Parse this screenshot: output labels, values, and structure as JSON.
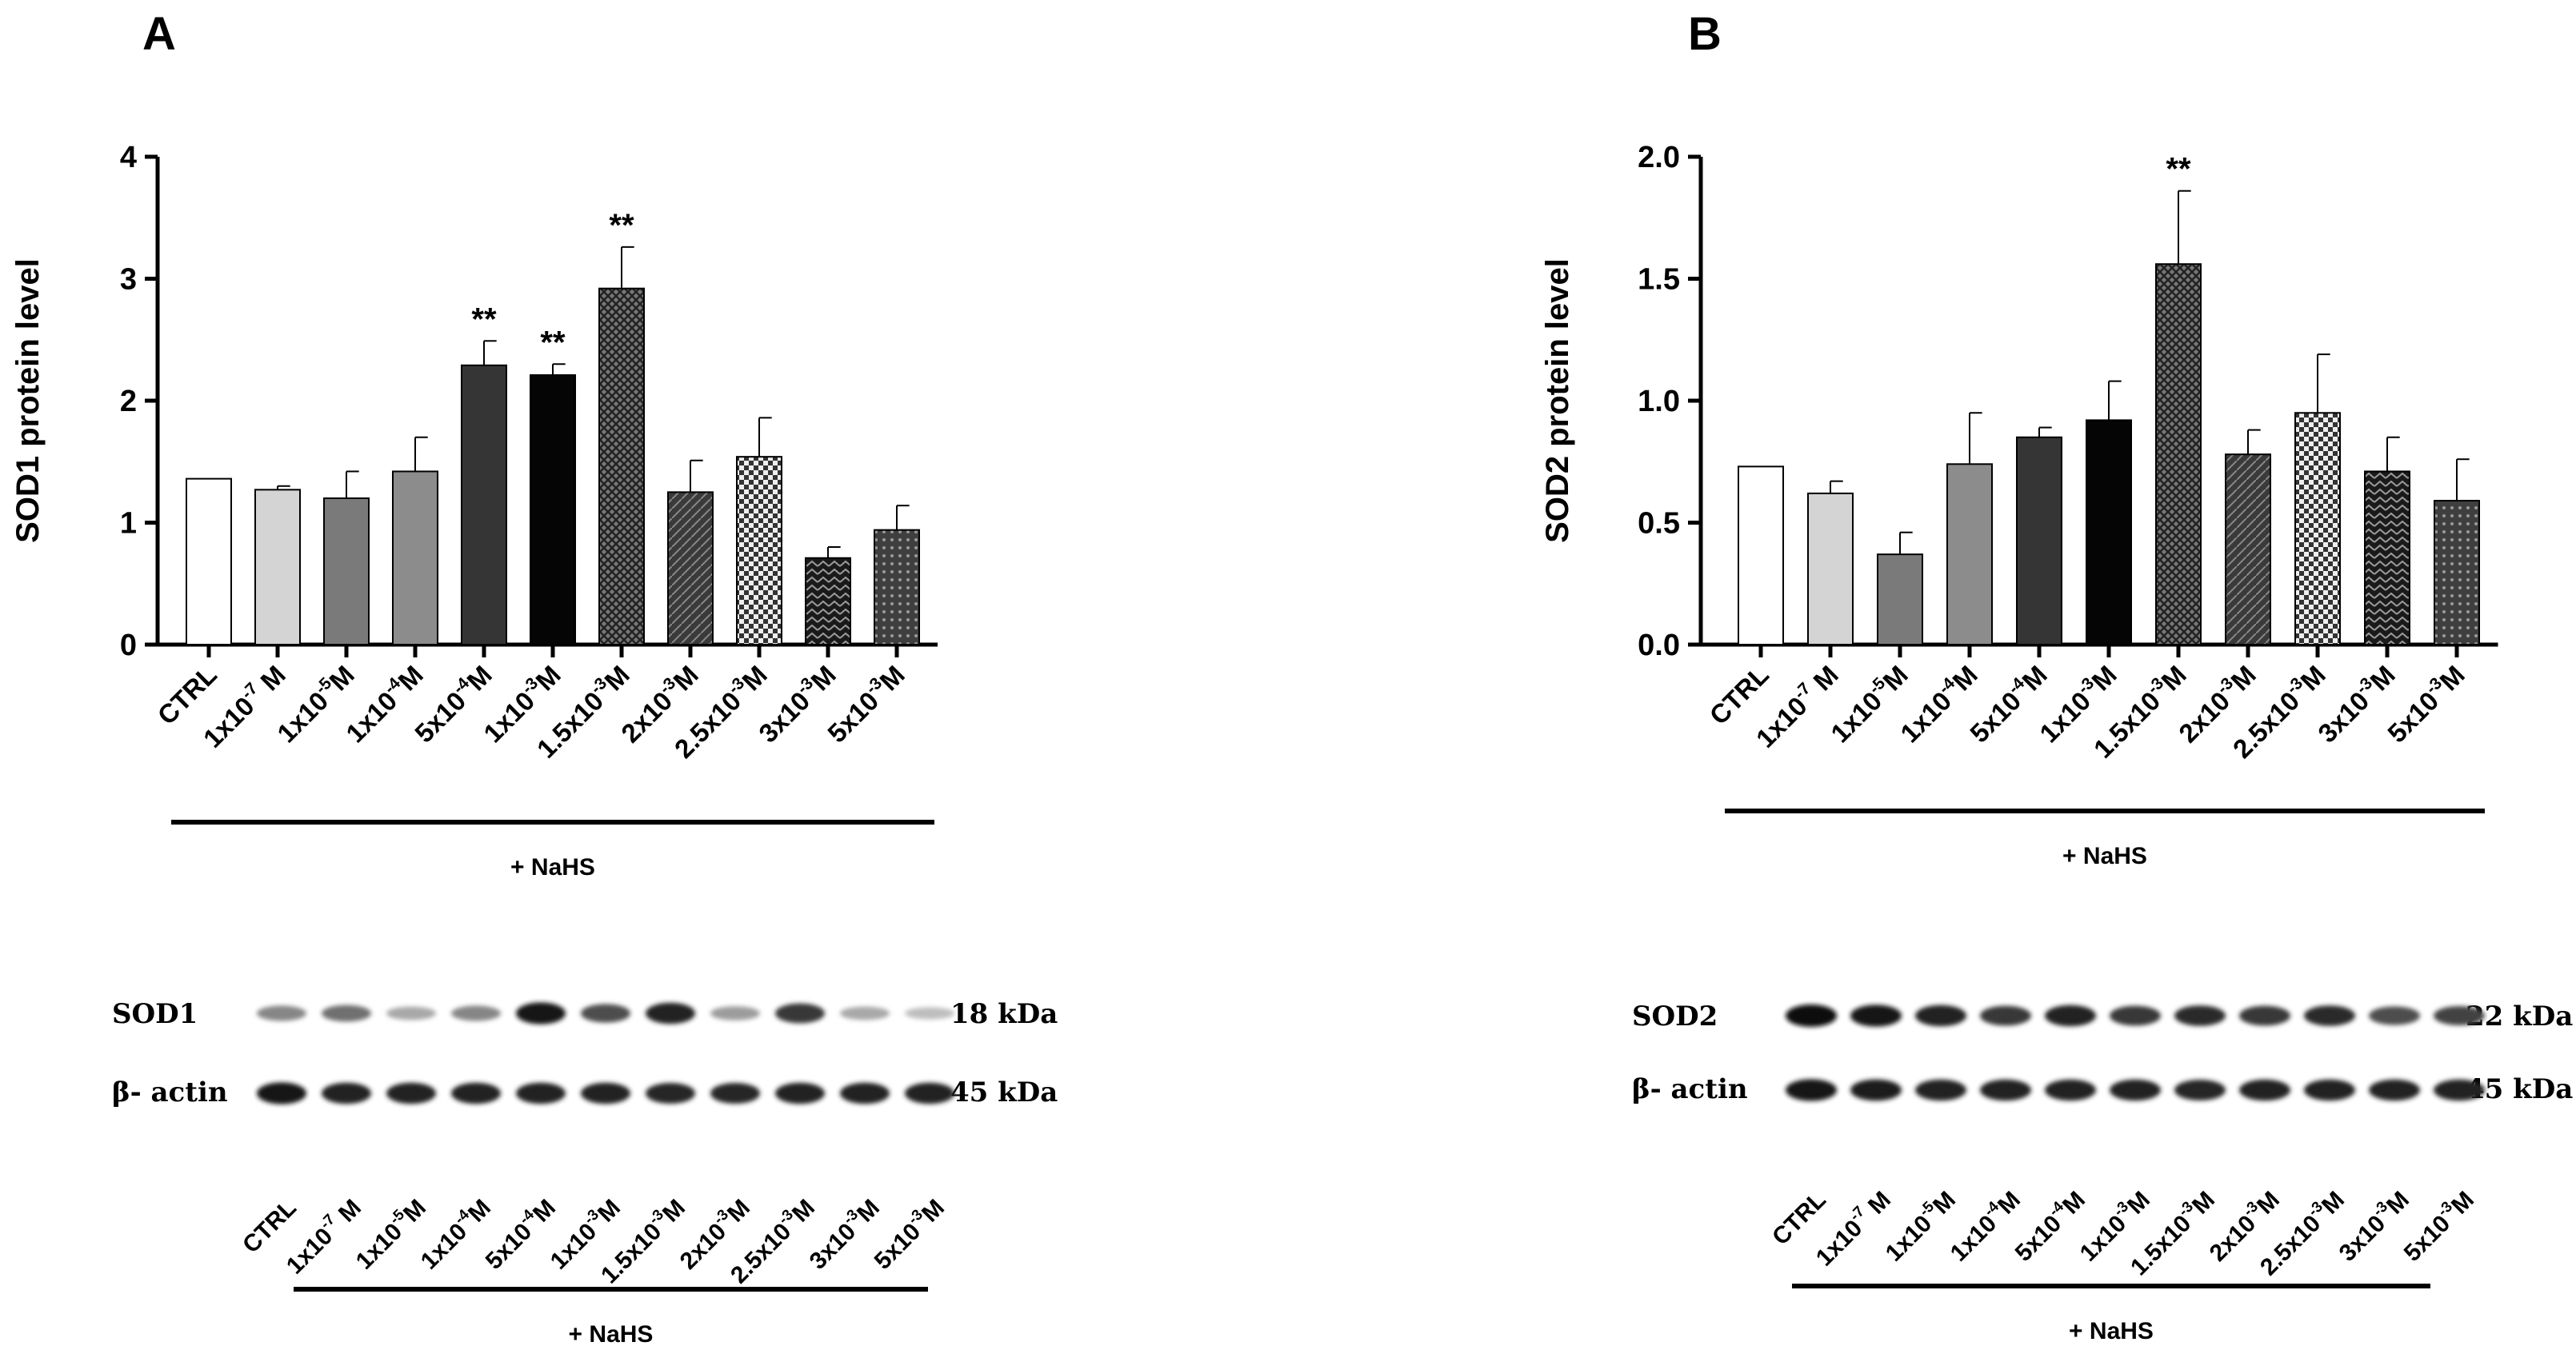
{
  "chart_data": [
    {
      "type": "bar",
      "panel": "A",
      "ylabel": "SOD1  protein level",
      "ylim": [
        0,
        4
      ],
      "yticks": [
        "0",
        "1",
        "2",
        "3",
        "4"
      ],
      "ytick_values": [
        0,
        1,
        2,
        3,
        4
      ],
      "categories": [
        "CTRL",
        "1x10-7 M",
        "1x10-5 M",
        "1x10-4 M",
        "5x10-4 M",
        "1x10-3 M",
        "1.5x10-3 M",
        "2x10-3 M",
        "2.5x10-3 M",
        "3x10-3 M",
        "5x10-3 M"
      ],
      "category_parts": [
        {
          "base": "CTRL",
          "exp": "",
          "unit": ""
        },
        {
          "base": "1x10",
          "exp": "-7",
          "unit": " M"
        },
        {
          "base": "1x10",
          "exp": "-5",
          "unit": "M"
        },
        {
          "base": "1x10",
          "exp": "-4",
          "unit": "M"
        },
        {
          "base": "5x10",
          "exp": "-4",
          "unit": "M"
        },
        {
          "base": "1x10",
          "exp": "-3",
          "unit": "M"
        },
        {
          "base": "1.5x10",
          "exp": "-3",
          "unit": "M"
        },
        {
          "base": "2x10",
          "exp": "-3",
          "unit": "M"
        },
        {
          "base": "2.5x10",
          "exp": "-3",
          "unit": "M"
        },
        {
          "base": "3x10",
          "exp": "-3",
          "unit": "M"
        },
        {
          "base": "5x10",
          "exp": "-3",
          "unit": "M"
        }
      ],
      "values": [
        1.36,
        1.27,
        1.2,
        1.42,
        2.29,
        2.21,
        2.92,
        1.25,
        1.54,
        0.71,
        0.94
      ],
      "errors": [
        0,
        0.03,
        0.22,
        0.28,
        0.2,
        0.09,
        0.34,
        0.26,
        0.32,
        0.09,
        0.2
      ],
      "significance": [
        "",
        "",
        "",
        "",
        "**",
        "**",
        "**",
        "",
        "",
        "",
        ""
      ],
      "group_label": "+ NaHS",
      "grid": false
    },
    {
      "type": "bar",
      "panel": "B",
      "ylabel": "SOD2  protein level",
      "ylim": [
        0,
        2
      ],
      "yticks": [
        "0.0",
        "0.5",
        "1.0",
        "1.5",
        "2.0"
      ],
      "ytick_values": [
        0,
        0.5,
        1,
        1.5,
        2
      ],
      "categories": [
        "CTRL",
        "1x10-7 M",
        "1x10-5 M",
        "1x10-4 M",
        "5x10-4 M",
        "1x10-3 M",
        "1.5x10-3 M",
        "2x10-3 M",
        "2.5x10-3 M",
        "3x10-3 M",
        "5x10-3 M"
      ],
      "category_parts": [
        {
          "base": "CTRL",
          "exp": "",
          "unit": ""
        },
        {
          "base": "1x10",
          "exp": "-7",
          "unit": " M"
        },
        {
          "base": "1x10",
          "exp": "-5",
          "unit": "M"
        },
        {
          "base": "1x10",
          "exp": "-4",
          "unit": "M"
        },
        {
          "base": "5x10",
          "exp": "-4",
          "unit": "M"
        },
        {
          "base": "1x10",
          "exp": "-3",
          "unit": "M"
        },
        {
          "base": "1.5x10",
          "exp": "-3",
          "unit": "M"
        },
        {
          "base": "2x10",
          "exp": "-3",
          "unit": "M"
        },
        {
          "base": "2.5x10",
          "exp": "-3",
          "unit": "M"
        },
        {
          "base": "3x10",
          "exp": "-3",
          "unit": "M"
        },
        {
          "base": "5x10",
          "exp": "-3",
          "unit": "M"
        }
      ],
      "values": [
        0.73,
        0.62,
        0.37,
        0.74,
        0.85,
        0.92,
        1.56,
        0.78,
        0.95,
        0.71,
        0.59
      ],
      "errors": [
        0,
        0.05,
        0.09,
        0.21,
        0.04,
        0.16,
        0.3,
        0.1,
        0.24,
        0.14,
        0.17
      ],
      "significance": [
        "",
        "",
        "",
        "",
        "",
        "",
        "**",
        "",
        "",
        "",
        ""
      ],
      "group_label": "+ NaHS",
      "grid": false
    }
  ],
  "blots": [
    {
      "panel": "A",
      "rows": [
        {
          "label": "SOD1",
          "kda": "18 kDa",
          "intensity": [
            0.45,
            0.55,
            0.3,
            0.45,
            0.95,
            0.7,
            0.9,
            0.35,
            0.8,
            0.3,
            0.2
          ]
        },
        {
          "label": "β- actin",
          "kda": "45 kDa",
          "intensity": [
            0.95,
            0.9,
            0.9,
            0.9,
            0.9,
            0.9,
            0.88,
            0.88,
            0.9,
            0.9,
            0.9
          ]
        }
      ],
      "group_label": "+ NaHS"
    },
    {
      "panel": "B",
      "rows": [
        {
          "label": "SOD2",
          "kda": "22 kDa",
          "intensity": [
            1.0,
            0.95,
            0.9,
            0.8,
            0.9,
            0.8,
            0.85,
            0.8,
            0.85,
            0.7,
            0.75
          ]
        },
        {
          "label": "β- actin",
          "kda": "45 kDa",
          "intensity": [
            0.95,
            0.92,
            0.9,
            0.9,
            0.9,
            0.9,
            0.88,
            0.9,
            0.9,
            0.9,
            0.9
          ]
        }
      ],
      "group_label": "+ NaHS"
    }
  ],
  "bar_styles": [
    {
      "fill": "#ffffff",
      "pattern": "none"
    },
    {
      "fill": "#d4d4d4",
      "pattern": "none"
    },
    {
      "fill": "#7a7a7a",
      "pattern": "none"
    },
    {
      "fill": "#8c8c8c",
      "pattern": "none"
    },
    {
      "fill": "#353535",
      "pattern": "none"
    },
    {
      "fill": "#050505",
      "pattern": "none"
    },
    {
      "fill": "#555555",
      "pattern": "grid"
    },
    {
      "fill": "#454545",
      "pattern": "cross"
    },
    {
      "fill": "#9a9a9a",
      "pattern": "check"
    },
    {
      "fill": "#222222",
      "pattern": "zigzag"
    },
    {
      "fill": "#4a4a4a",
      "pattern": "dots"
    }
  ]
}
